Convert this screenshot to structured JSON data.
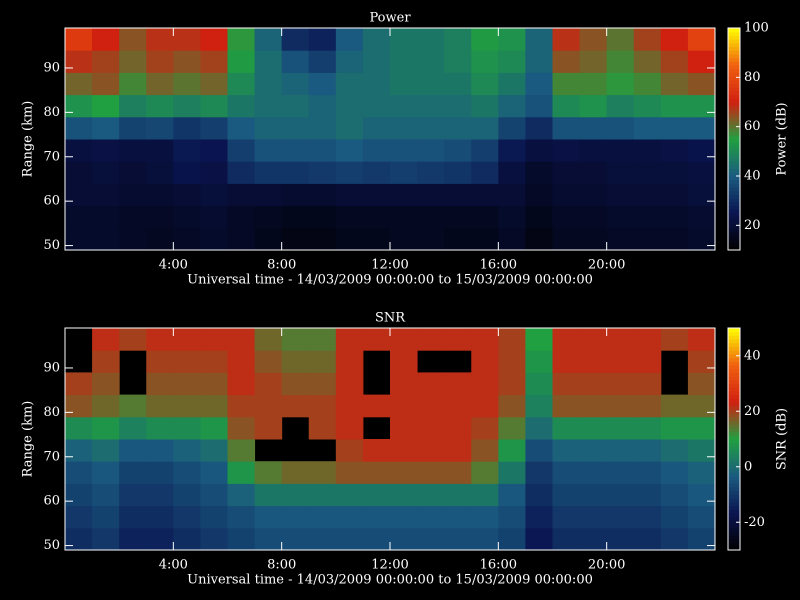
{
  "chart_data": [
    {
      "type": "heatmap",
      "title": "Power",
      "xlabel": "Universal time - 14/03/2009 00:00:00 to 15/03/2009 00:00:00",
      "ylabel": "Range (km)",
      "zlabel": "Power (dB)",
      "xlim": [
        0,
        24
      ],
      "ylim": [
        49,
        99
      ],
      "zlim": [
        10,
        100
      ],
      "xticks": [
        {
          "value": 4,
          "label": "4:00"
        },
        {
          "value": 8,
          "label": "8:00"
        },
        {
          "value": 12,
          "label": "12:00"
        },
        {
          "value": 16,
          "label": "16:00"
        },
        {
          "value": 20,
          "label": "20:00"
        }
      ],
      "yticks": [
        50,
        60,
        70,
        80,
        90
      ],
      "zticks": [
        20,
        40,
        60,
        80,
        100
      ],
      "colormap": [
        "#000000",
        "#0a1450",
        "#1a5a80",
        "#20a040",
        "#d02010",
        "#f06010",
        "#ffff00"
      ],
      "x": [
        0.5,
        1.5,
        2.5,
        3.5,
        4.5,
        5.5,
        6.5,
        7.5,
        8.5,
        9.5,
        10.5,
        11.5,
        12.5,
        13.5,
        14.5,
        15.5,
        16.5,
        17.5,
        18.5,
        19.5,
        20.5,
        21.5,
        22.5,
        23.5
      ],
      "y": [
        51.5,
        56.5,
        61.5,
        66.5,
        71.5,
        76.5,
        81.5,
        86.5,
        91.5,
        96.5
      ],
      "z": [
        [
          18,
          18,
          17,
          16,
          17,
          18,
          17,
          15,
          14,
          14,
          15,
          15,
          16,
          16,
          15,
          15,
          17,
          14,
          16,
          16,
          17,
          17,
          17,
          18
        ],
        [
          18,
          18,
          17,
          17,
          18,
          19,
          17,
          16,
          15,
          15,
          16,
          16,
          16,
          16,
          16,
          16,
          18,
          15,
          17,
          17,
          18,
          18,
          18,
          19
        ],
        [
          20,
          20,
          19,
          19,
          20,
          21,
          20,
          20,
          19,
          19,
          20,
          20,
          20,
          20,
          20,
          20,
          20,
          17,
          19,
          19,
          20,
          20,
          20,
          21
        ],
        [
          20,
          21,
          20,
          21,
          24,
          23,
          30,
          32,
          32,
          33,
          34,
          33,
          34,
          33,
          32,
          30,
          22,
          18,
          20,
          20,
          21,
          21,
          21,
          22
        ],
        [
          22,
          23,
          22,
          22,
          26,
          25,
          34,
          38,
          38,
          38,
          40,
          38,
          38,
          38,
          37,
          34,
          26,
          22,
          23,
          22,
          22,
          22,
          23,
          24
        ],
        [
          38,
          40,
          35,
          36,
          32,
          34,
          40,
          42,
          42,
          42,
          44,
          42,
          42,
          42,
          42,
          42,
          35,
          30,
          38,
          38,
          38,
          40,
          40,
          40
        ],
        [
          52,
          55,
          48,
          50,
          48,
          50,
          46,
          44,
          44,
          42,
          44,
          44,
          44,
          44,
          44,
          46,
          42,
          38,
          50,
          52,
          48,
          50,
          52,
          52
        ],
        [
          62,
          64,
          58,
          62,
          60,
          62,
          50,
          44,
          42,
          40,
          44,
          44,
          46,
          46,
          46,
          50,
          46,
          40,
          58,
          58,
          56,
          58,
          62,
          64
        ],
        [
          68,
          66,
          62,
          66,
          64,
          66,
          54,
          44,
          38,
          34,
          42,
          44,
          46,
          46,
          48,
          52,
          50,
          42,
          64,
          62,
          58,
          62,
          66,
          70
        ],
        [
          76,
          70,
          64,
          68,
          68,
          70,
          56,
          42,
          30,
          28,
          40,
          44,
          46,
          46,
          48,
          54,
          52,
          42,
          68,
          64,
          60,
          66,
          70,
          78
        ]
      ]
    },
    {
      "type": "heatmap",
      "title": "SNR",
      "xlabel": "Universal time - 14/03/2009 00:00:00 to 15/03/2009 00:00:00",
      "ylabel": "Range (km)",
      "zlabel": "SNR (dB)",
      "xlim": [
        0,
        24
      ],
      "ylim": [
        49,
        99
      ],
      "zlim": [
        -30,
        50
      ],
      "xticks": [
        {
          "value": 4,
          "label": "4:00"
        },
        {
          "value": 8,
          "label": "8:00"
        },
        {
          "value": 12,
          "label": "12:00"
        },
        {
          "value": 16,
          "label": "16:00"
        },
        {
          "value": 20,
          "label": "20:00"
        }
      ],
      "yticks": [
        50,
        60,
        70,
        80,
        90
      ],
      "zticks": [
        -20,
        0,
        20,
        40
      ],
      "colormap": [
        "#000000",
        "#0a1450",
        "#1a5a80",
        "#20a040",
        "#d02010",
        "#f06010",
        "#ffff00"
      ],
      "x": [
        0.5,
        1.5,
        2.5,
        3.5,
        4.5,
        5.5,
        6.5,
        7.5,
        8.5,
        9.5,
        10.5,
        11.5,
        12.5,
        13.5,
        14.5,
        15.5,
        16.5,
        17.5,
        18.5,
        19.5,
        20.5,
        21.5,
        22.5,
        23.5
      ],
      "y": [
        51.5,
        56.5,
        61.5,
        66.5,
        71.5,
        76.5,
        81.5,
        86.5,
        91.5,
        96.5
      ],
      "z": [
        [
          -12,
          -10,
          -14,
          -14,
          -12,
          -10,
          -8,
          -6,
          -6,
          -6,
          -6,
          -6,
          -6,
          -6,
          -6,
          -6,
          -8,
          -16,
          -12,
          -12,
          -12,
          -12,
          -10,
          -8
        ],
        [
          -10,
          -8,
          -12,
          -12,
          -10,
          -8,
          -6,
          -4,
          -4,
          -4,
          -4,
          -4,
          -4,
          -4,
          -4,
          -4,
          -6,
          -14,
          -10,
          -10,
          -10,
          -10,
          -8,
          -6
        ],
        [
          -8,
          -6,
          -10,
          -10,
          -8,
          -6,
          -2,
          2,
          2,
          2,
          2,
          2,
          2,
          2,
          2,
          2,
          -4,
          -12,
          -8,
          -8,
          -8,
          -8,
          -6,
          -4
        ],
        [
          -6,
          -4,
          -8,
          -8,
          -6,
          -4,
          8,
          14,
          16,
          16,
          18,
          18,
          18,
          18,
          18,
          14,
          2,
          -10,
          -6,
          -6,
          -6,
          -6,
          -4,
          -2
        ],
        [
          -2,
          0,
          -4,
          -4,
          -2,
          0,
          14,
          null,
          null,
          null,
          20,
          22,
          22,
          22,
          22,
          18,
          8,
          -6,
          -2,
          -2,
          -2,
          -2,
          0,
          2
        ],
        [
          6,
          8,
          4,
          6,
          6,
          8,
          18,
          20,
          null,
          20,
          22,
          null,
          22,
          22,
          22,
          20,
          14,
          0,
          6,
          6,
          6,
          6,
          8,
          8
        ],
        [
          18,
          16,
          14,
          16,
          16,
          16,
          20,
          20,
          20,
          20,
          22,
          22,
          22,
          22,
          22,
          22,
          18,
          4,
          18,
          18,
          18,
          18,
          16,
          16
        ],
        [
          20,
          18,
          null,
          18,
          18,
          18,
          22,
          20,
          18,
          18,
          22,
          null,
          22,
          22,
          22,
          22,
          20,
          6,
          20,
          20,
          20,
          20,
          null,
          18
        ],
        [
          null,
          20,
          null,
          20,
          20,
          20,
          22,
          18,
          16,
          16,
          22,
          null,
          22,
          null,
          null,
          22,
          20,
          8,
          22,
          22,
          22,
          22,
          null,
          20
        ],
        [
          null,
          22,
          20,
          22,
          22,
          22,
          22,
          16,
          14,
          14,
          22,
          22,
          22,
          22,
          22,
          22,
          20,
          10,
          22,
          22,
          22,
          22,
          20,
          22
        ]
      ]
    }
  ]
}
